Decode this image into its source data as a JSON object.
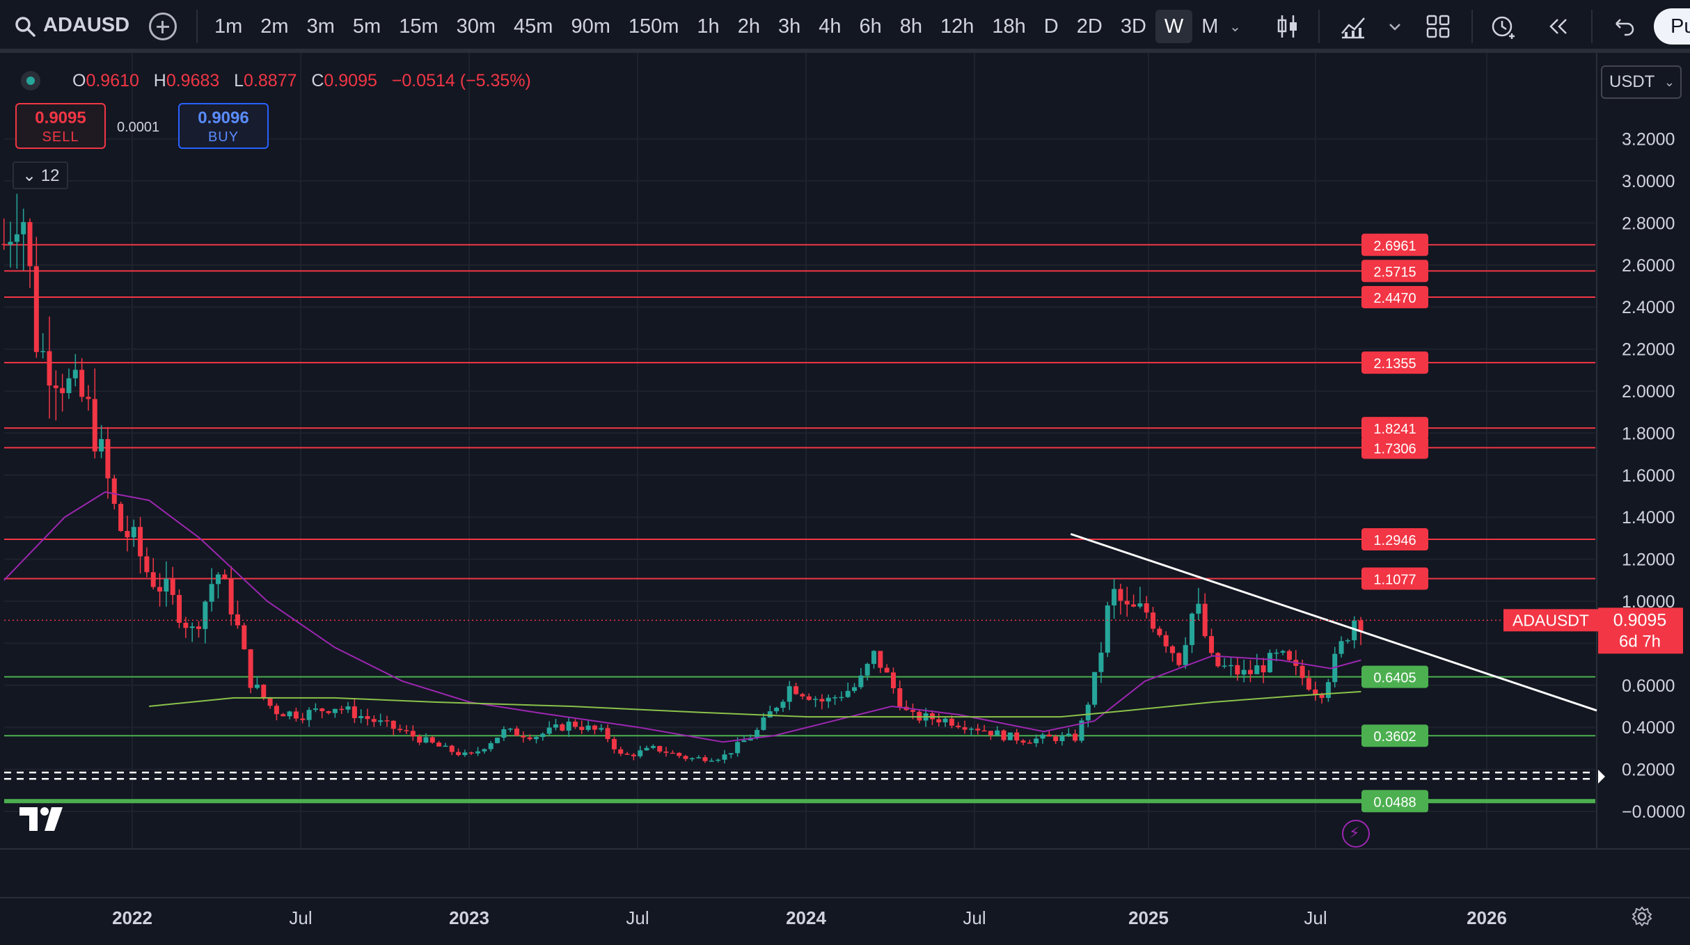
{
  "toolbar": {
    "symbol": "ADAUSD",
    "intervals": [
      "1m",
      "2m",
      "3m",
      "5m",
      "15m",
      "30m",
      "45m",
      "90m",
      "150m",
      "1h",
      "2h",
      "3h",
      "4h",
      "6h",
      "8h",
      "12h",
      "18h",
      "D",
      "2D",
      "3D",
      "W",
      "M"
    ],
    "active_interval": "W",
    "publish_label": "Pu"
  },
  "legend": {
    "open_label": "O",
    "open": "0.9610",
    "high_label": "H",
    "high": "0.9683",
    "low_label": "L",
    "low": "0.8877",
    "close_label": "C",
    "close": "0.9095",
    "change": "−0.0514 (−5.35%)"
  },
  "trade": {
    "sell_price": "0.9095",
    "sell_label": "SELL",
    "spread": "0.0001",
    "buy_price": "0.9096",
    "buy_label": "BUY"
  },
  "indicators_count": "12",
  "currency": "USDT",
  "colors": {
    "up": "#26a69a",
    "down": "#f23645",
    "resistance": "#f23645",
    "support": "#4caf50",
    "ma_fast": "#9c27b0",
    "ma_slow": "#8bc34a",
    "trendline": "#ffffff"
  },
  "chart_data": {
    "type": "candlestick",
    "symbol": "ADAUSDT",
    "price_axis": {
      "min": -0.1,
      "max": 3.3,
      "ticks": [
        "3.2000",
        "3.0000",
        "2.8000",
        "2.6000",
        "2.4000",
        "2.2000",
        "2.0000",
        "1.8000",
        "1.6000",
        "1.4000",
        "1.2000",
        "1.0000",
        "0.8000",
        "0.6000",
        "0.4000",
        "0.2000",
        "−0.0000"
      ]
    },
    "time_axis": {
      "labels": [
        "2022",
        "Jul",
        "2023",
        "Jul",
        "2024",
        "Jul",
        "2025",
        "Jul",
        "2026"
      ]
    },
    "horizontal_levels": [
      {
        "value": 2.6961,
        "label": "2.6961",
        "kind": "resistance"
      },
      {
        "value": 2.5715,
        "label": "2.5715",
        "kind": "resistance"
      },
      {
        "value": 2.447,
        "label": "2.4470",
        "kind": "resistance"
      },
      {
        "value": 2.1355,
        "label": "2.1355",
        "kind": "resistance"
      },
      {
        "value": 1.8241,
        "label": "1.8241",
        "kind": "resistance"
      },
      {
        "value": 1.7306,
        "label": "1.7306",
        "kind": "resistance"
      },
      {
        "value": 1.2946,
        "label": "1.2946",
        "kind": "resistance"
      },
      {
        "value": 1.1077,
        "label": "1.1077",
        "kind": "resistance"
      },
      {
        "value": 0.6405,
        "label": "0.6405",
        "kind": "support"
      },
      {
        "value": 0.3602,
        "label": "0.3602",
        "kind": "support"
      },
      {
        "value": 0.0488,
        "label": "0.0488",
        "kind": "support"
      }
    ],
    "current_price": {
      "value": 0.9095,
      "label": "0.9095",
      "countdown": "6d 7h",
      "symbol_label": "ADAUSDT"
    },
    "trendline": {
      "from_price": 1.32,
      "to_price": 0.48,
      "from_date": "2024-11",
      "to_date": "2026-01"
    },
    "moving_averages": [
      {
        "color": "#9c27b0",
        "kind": "fast"
      },
      {
        "color": "#8bc34a",
        "kind": "slow"
      }
    ]
  }
}
